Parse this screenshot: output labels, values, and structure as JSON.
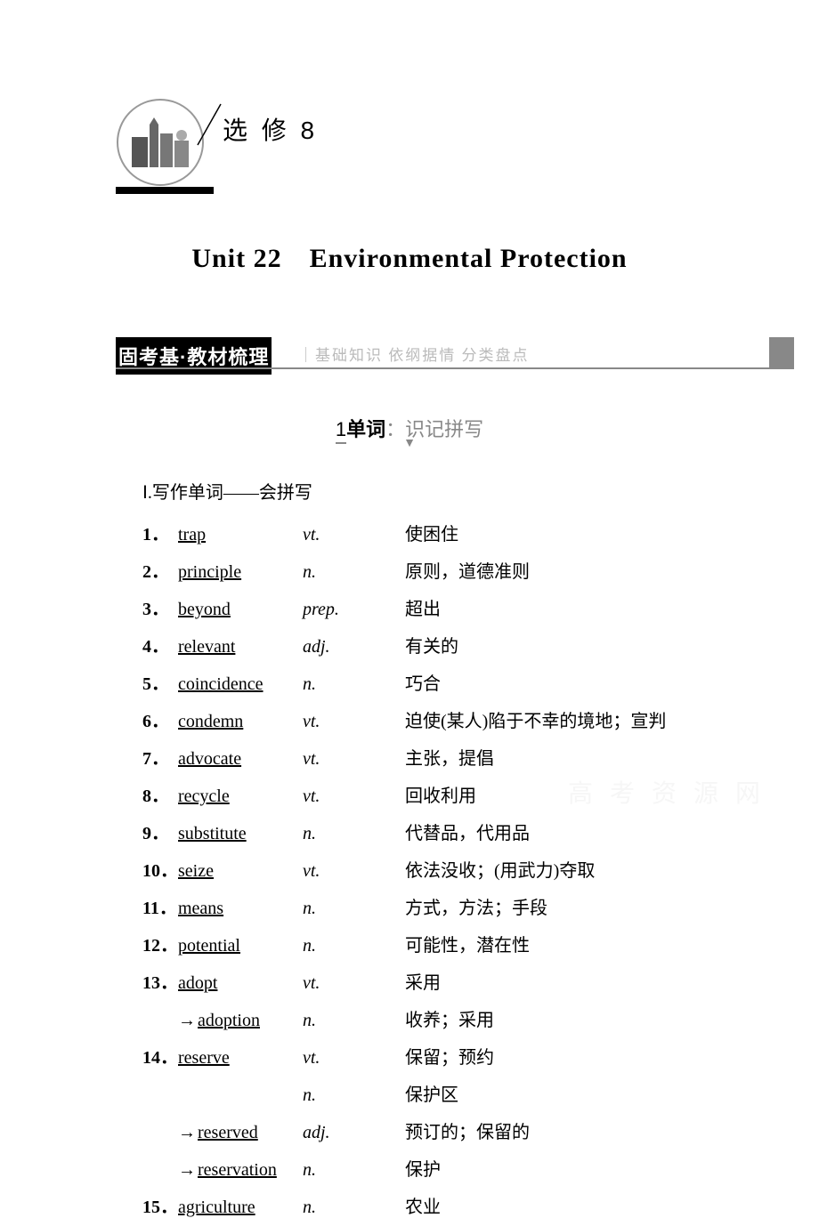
{
  "header": {
    "book_label": "选 修 8",
    "unit_title": "Unit 22　Environmental Protection"
  },
  "section": {
    "label": "固考基·教材梳理",
    "separator": "｜",
    "subtitle": "基础知识 依纲据情 分类盘点"
  },
  "sub_section": {
    "number": "1",
    "bold_part": "单词",
    "light_part": "：识记拼写"
  },
  "category": {
    "title": "Ⅰ.写作单词——会拼写"
  },
  "vocab": [
    {
      "num": "1．",
      "word": "trap",
      "pos": "vt.",
      "def": "使困住"
    },
    {
      "num": "2．",
      "word": "principle",
      "pos": "n.",
      "def": "原则，道德准则"
    },
    {
      "num": "3．",
      "word": "beyond",
      "pos": "prep.",
      "def": "超出"
    },
    {
      "num": "4．",
      "word": "relevant",
      "pos": "adj.",
      "def": "有关的"
    },
    {
      "num": "5．",
      "word": "coincidence",
      "pos": "n.",
      "def": "巧合"
    },
    {
      "num": "6．",
      "word": "condemn",
      "pos": "vt.",
      "def": "迫使(某人)陷于不幸的境地；宣判"
    },
    {
      "num": "7．",
      "word": "advocate",
      "pos": "vt.",
      "def": "主张，提倡"
    },
    {
      "num": "8．",
      "word": "recycle",
      "pos": "vt.",
      "def": "回收利用"
    },
    {
      "num": "9．",
      "word": "substitute",
      "pos": "n.",
      "def": "代替品，代用品"
    },
    {
      "num": "10．",
      "word": "seize",
      "pos": "vt.",
      "def": "依法没收；(用武力)夺取"
    },
    {
      "num": "11．",
      "word": "means",
      "pos": "n.",
      "def": "方式，方法；手段"
    },
    {
      "num": "12．",
      "word": "potential",
      "pos": "n.",
      "def": "可能性，潜在性"
    },
    {
      "num": "13．",
      "word": "adopt",
      "pos": "vt.",
      "def": "采用"
    },
    {
      "num": "",
      "word": "adoption",
      "pos": "n.",
      "def": "收养；采用",
      "derived": true
    },
    {
      "num": "14．",
      "word": "reserve",
      "pos": "vt.",
      "def": "保留；预约"
    },
    {
      "num": "",
      "word": "",
      "pos": "n.",
      "def": "保护区",
      "no_word": true
    },
    {
      "num": "",
      "word": "reserved",
      "pos": "adj.",
      "def": "预订的；保留的",
      "derived": true
    },
    {
      "num": "",
      "word": "reservation",
      "pos": "n.",
      "def": "保护",
      "derived": true
    },
    {
      "num": "15．",
      "word": "agriculture",
      "pos": "n.",
      "def": "农业"
    }
  ],
  "colors": {
    "background": "#ffffff",
    "black": "#000000",
    "gray_line": "#888888",
    "light_text": "#bbbbbb"
  },
  "watermark": "高 考 资 源 网"
}
